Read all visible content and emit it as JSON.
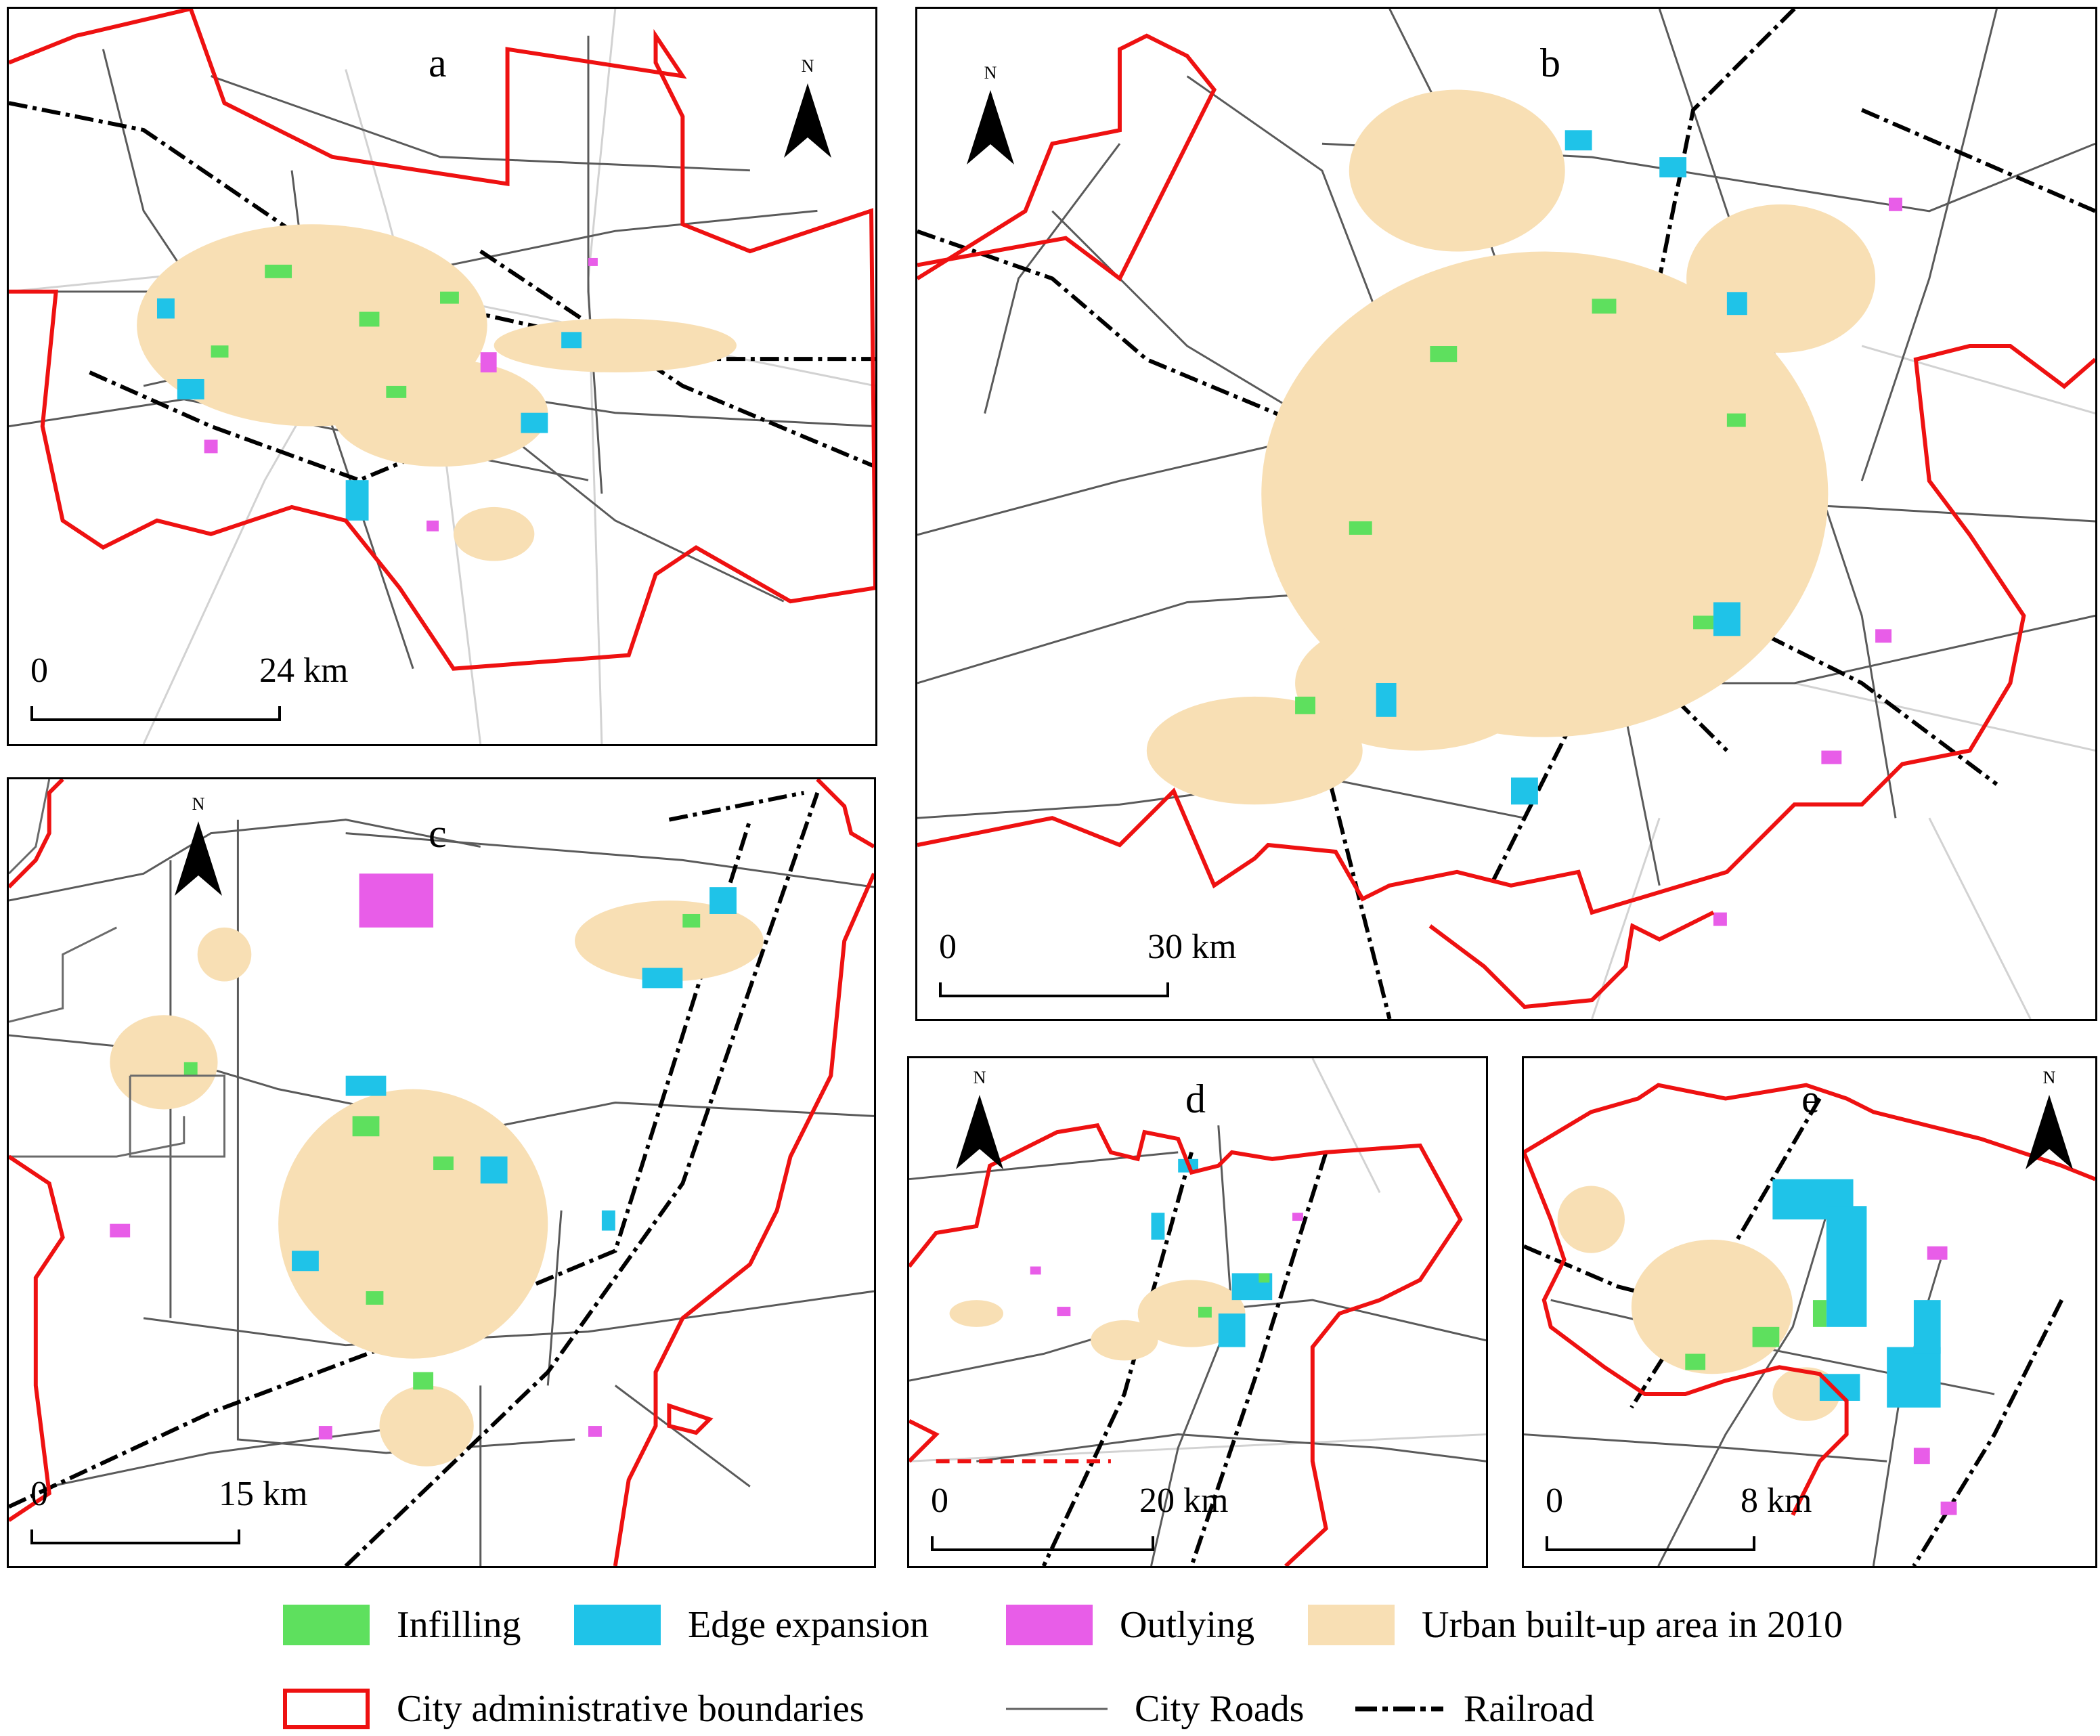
{
  "panels": [
    {
      "id": "a",
      "label": "a",
      "scale": {
        "zero": "0",
        "distance": "24",
        "unit": "km"
      }
    },
    {
      "id": "b",
      "label": "b",
      "scale": {
        "zero": "0",
        "distance": "30",
        "unit": "km"
      }
    },
    {
      "id": "c",
      "label": "c",
      "scale": {
        "zero": "0",
        "distance": "15",
        "unit": "km"
      }
    },
    {
      "id": "d",
      "label": "d",
      "scale": {
        "zero": "0",
        "distance": "20",
        "unit": "km"
      }
    },
    {
      "id": "e",
      "label": "e",
      "scale": {
        "zero": "0",
        "distance": "8",
        "unit": "km"
      }
    }
  ],
  "north_label": "N",
  "legend": {
    "infilling": {
      "label": "Infilling",
      "color": "#5ee05e"
    },
    "edge_expansion": {
      "label": "Edge expansion",
      "color": "#1fc3e8"
    },
    "outlying": {
      "label": "Outlying",
      "color": "#e85de8"
    },
    "urban_2010": {
      "label": "Urban built-up area in 2010",
      "color": "#f8dfb4"
    },
    "boundaries": {
      "label": "City administrative boundaries",
      "color": "#ee1111"
    },
    "roads": {
      "label": "City Roads",
      "color": "#606060"
    },
    "railroad": {
      "label": "Railroad",
      "color": "#000000"
    }
  }
}
